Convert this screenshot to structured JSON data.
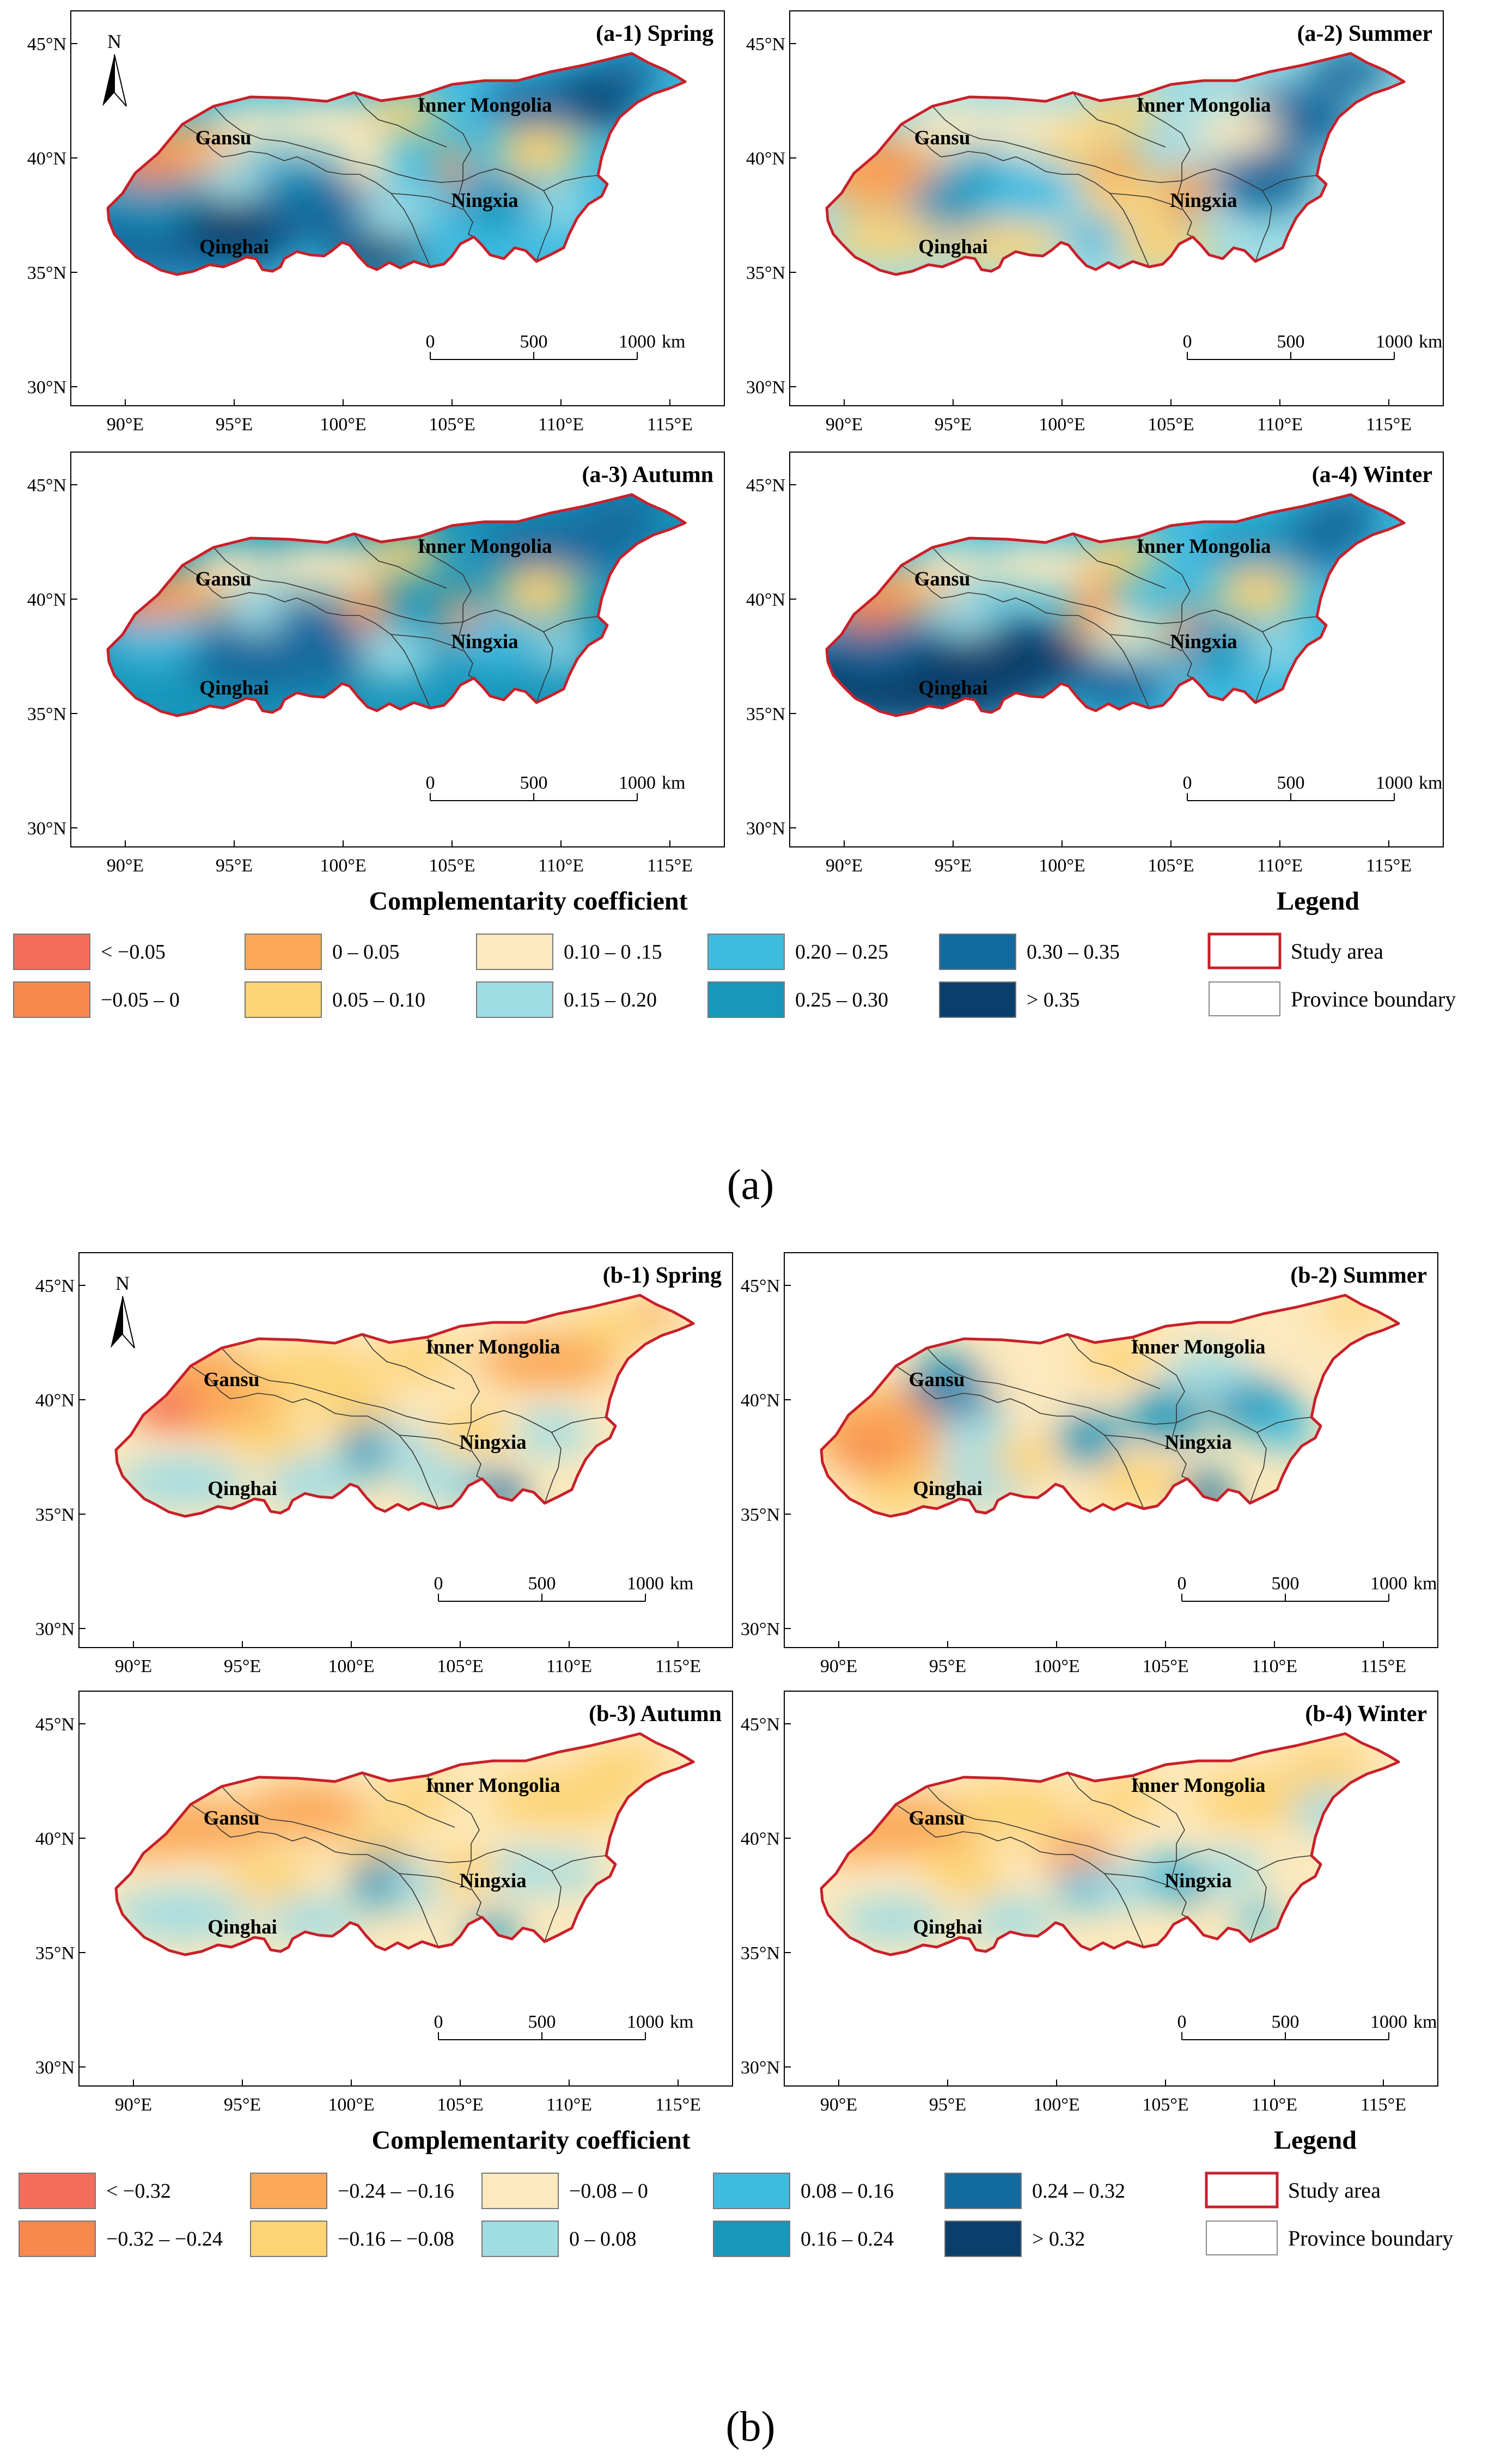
{
  "axes": {
    "lat_ticks": [
      "45°N",
      "40°N",
      "35°N",
      "30°N"
    ],
    "lon_ticks": [
      "90°E",
      "95°E",
      "100°E",
      "105°E",
      "110°E",
      "115°E"
    ]
  },
  "north_label": "N",
  "scalebar": {
    "labels": [
      "0",
      "500",
      "1000"
    ],
    "unit": "km"
  },
  "regions": [
    {
      "name": "gansu",
      "label": "Gansu"
    },
    {
      "name": "inner-mongolia",
      "label": "Inner Mongolia"
    },
    {
      "name": "ningxia",
      "label": "Ningxia"
    },
    {
      "name": "qinghai",
      "label": "Qinghai"
    }
  ],
  "colors": {
    "border": "#c8202a",
    "province": "#333333",
    "classes": [
      "#f46d5a",
      "#f7884e",
      "#fba858",
      "#fdd374",
      "#fde9bd",
      "#9fdce4",
      "#3fbbe0",
      "#1896bc",
      "#136a9e",
      "#0a3f6c"
    ]
  },
  "parts": [
    {
      "id": "a",
      "caption": "(a)",
      "legend_title": "Complementarity coefficient",
      "legend_heading": "Legend",
      "study_area": "Study area",
      "province_boundary": "Province boundary",
      "classes": [
        "< −0.05",
        "−0.05 – 0",
        "0 – 0.05",
        "0.05 – 0.10",
        "0.10 – 0 .15",
        "0.15 – 0.20",
        "0.20 – 0.25",
        "0.25 – 0.30",
        "0.30 – 0.35",
        "> 0.35"
      ],
      "panels": [
        {
          "title": "(a-1)  Spring"
        },
        {
          "title": "(a-2) Summer"
        },
        {
          "title": "(a-3)  Autumn"
        },
        {
          "title": "(a-4)  Winter"
        }
      ]
    },
    {
      "id": "b",
      "caption": "(b)",
      "legend_title": "Complementarity coefficient",
      "legend_heading": "Legend",
      "study_area": "Study area",
      "province_boundary": "Province boundary",
      "classes": [
        "< −0.32",
        "−0.32 – −0.24",
        "−0.24 – −0.16",
        "−0.16 – −0.08",
        "−0.08 – 0",
        "0 – 0.08",
        "0.08 – 0.16",
        "0.16 – 0.24",
        "0.24 – 0.32",
        "> 0.32"
      ],
      "panels": [
        {
          "title": "(b-1)  Spring"
        },
        {
          "title": "(b-2) Summer"
        },
        {
          "title": "(b-3)  Autumn"
        },
        {
          "title": "(b-4)  Winter"
        }
      ]
    }
  ]
}
